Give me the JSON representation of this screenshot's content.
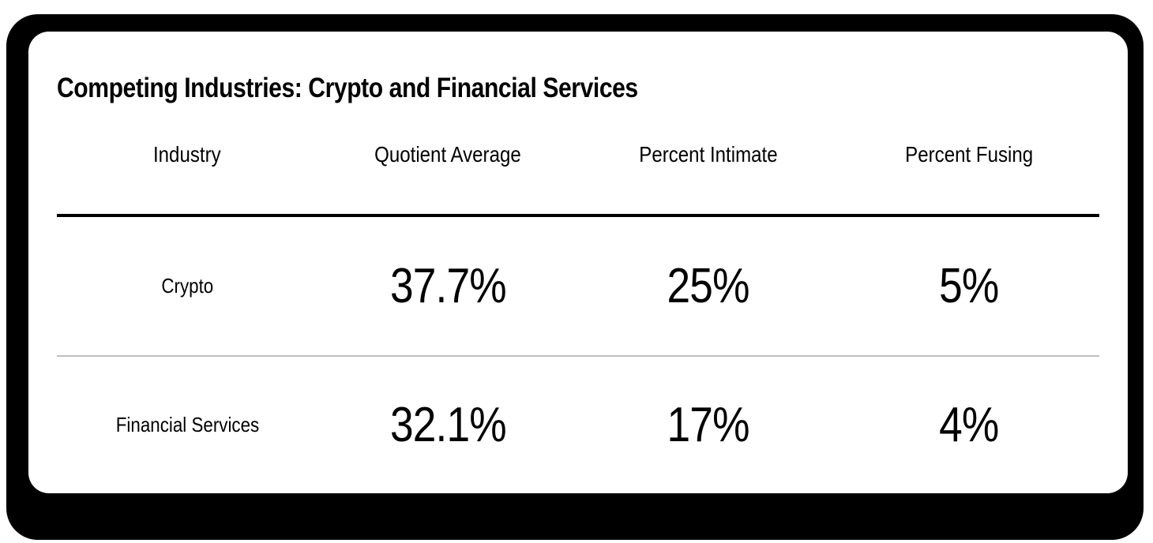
{
  "title": "Competing Industries: Crypto and Financial Services",
  "table": {
    "columns": [
      "Industry",
      "Quotient Average",
      "Percent Intimate",
      "Percent Fusing"
    ],
    "rows": [
      {
        "cells": [
          "Crypto",
          "37.7%",
          "25%",
          "5%"
        ]
      },
      {
        "cells": [
          "Financial Services",
          "32.1%",
          "17%",
          "4%"
        ]
      }
    ]
  },
  "colors": {
    "frame_background": "#000000",
    "card_background": "#ffffff",
    "text": "#000000",
    "header_rule": "#000000",
    "row_divider": "#bdbdbd"
  },
  "chart_data": {
    "type": "table",
    "title": "Competing Industries: Crypto and Financial Services",
    "columns": [
      "Industry",
      "Quotient Average",
      "Percent Intimate",
      "Percent Fusing"
    ],
    "categories": [
      "Crypto",
      "Financial Services"
    ],
    "series": [
      {
        "name": "Quotient Average",
        "values": [
          37.7,
          32.1
        ],
        "unit": "%"
      },
      {
        "name": "Percent Intimate",
        "values": [
          25,
          17
        ],
        "unit": "%"
      },
      {
        "name": "Percent Fusing",
        "values": [
          5,
          4
        ],
        "unit": "%"
      }
    ],
    "rows": [
      [
        "Crypto",
        "37.7%",
        "25%",
        "5%"
      ],
      [
        "Financial Services",
        "32.1%",
        "17%",
        "4%"
      ]
    ],
    "layout": {
      "grid": "header-rule-thick, single-light-row-divider",
      "alignment": "centered columns"
    }
  }
}
